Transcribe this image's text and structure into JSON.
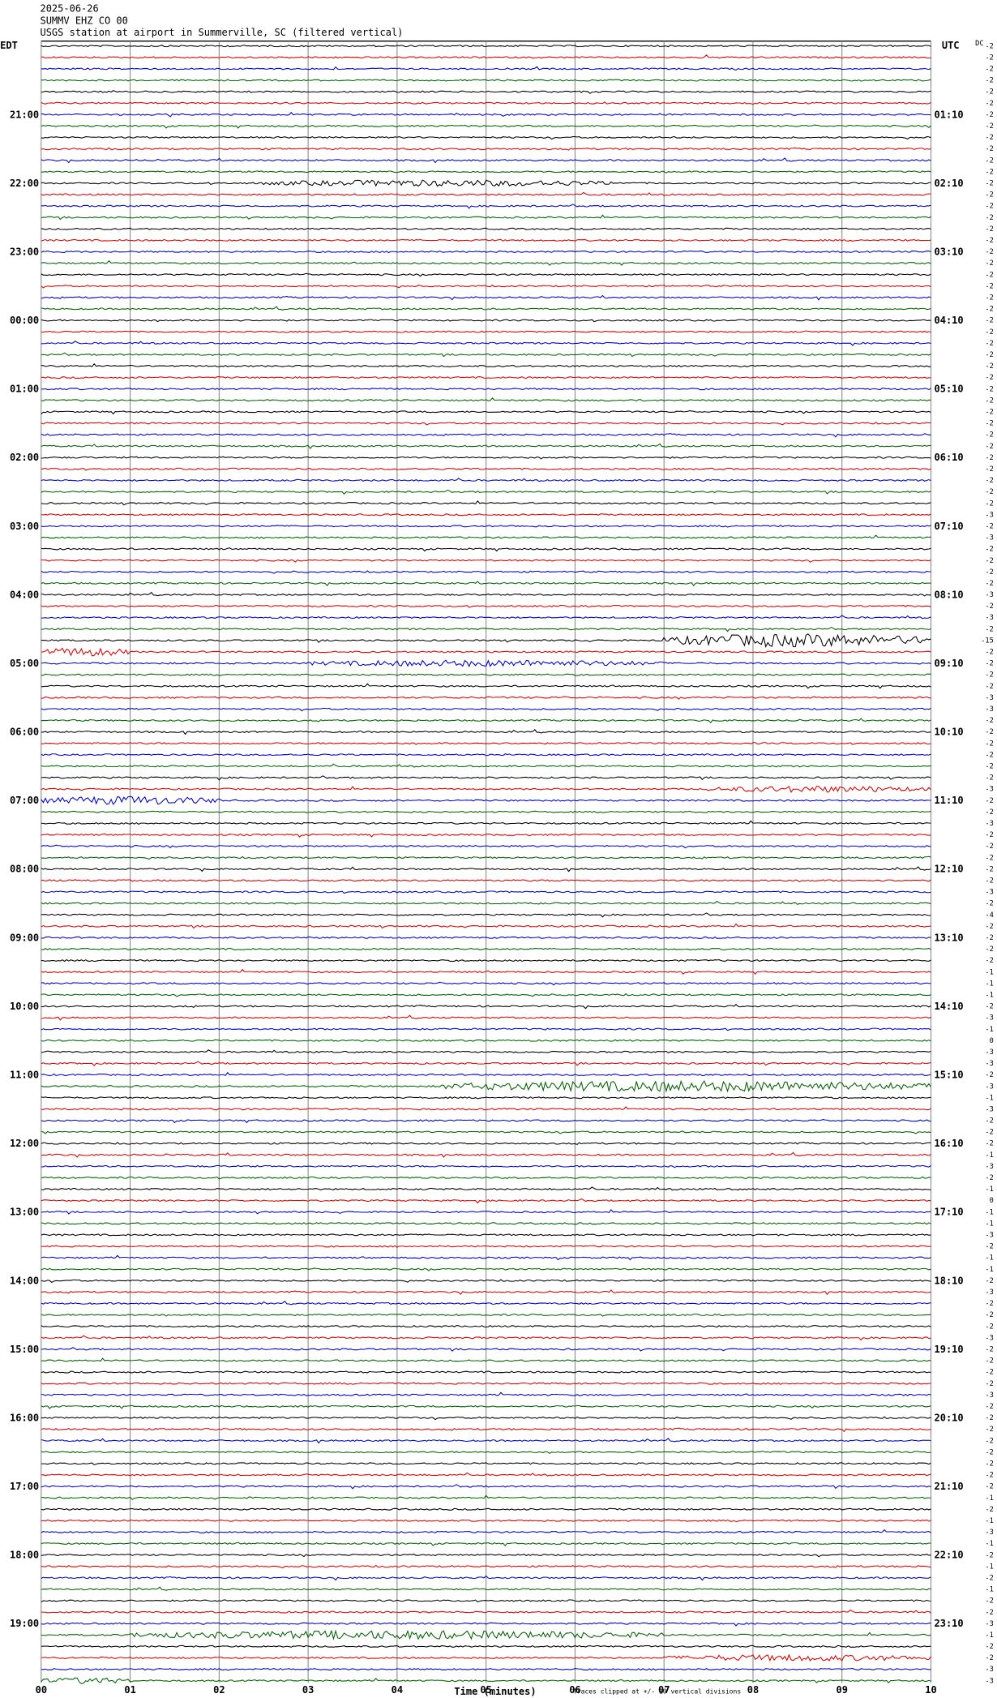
{
  "header": {
    "date": "2025-06-26",
    "station": "SUMMV EHZ CO 00",
    "description": "USGS station at airport in Summerville, SC (filtered vertical)"
  },
  "left_label": "EDT",
  "right_label": "UTC",
  "dc_label": "DC",
  "left_times": [
    "21:00",
    "22:00",
    "23:00",
    "00:00",
    "01:00",
    "02:00",
    "03:00",
    "04:00",
    "05:00",
    "06:00",
    "07:00",
    "08:00",
    "09:00",
    "10:00",
    "11:00",
    "12:00",
    "13:00",
    "14:00",
    "15:00",
    "16:00",
    "17:00",
    "18:00",
    "19:00"
  ],
  "right_times": [
    "01:10",
    "02:10",
    "03:10",
    "04:10",
    "05:10",
    "06:10",
    "07:10",
    "08:10",
    "09:10",
    "10:10",
    "11:10",
    "12:10",
    "13:10",
    "14:10",
    "15:10",
    "16:10",
    "17:10",
    "18:10",
    "19:10",
    "20:10",
    "21:10",
    "22:10",
    "23:10"
  ],
  "x_ticks": [
    "00",
    "01",
    "02",
    "03",
    "04",
    "05",
    "06",
    "07",
    "08",
    "09",
    "10"
  ],
  "x_label": "Time (minutes)",
  "footnote": "Traces clipped at +/- 10 vertical divisions",
  "trace_colors": [
    "#000000",
    "#e00000",
    "#0000d0",
    "#006400"
  ],
  "dc_offsets": [
    -2,
    -2,
    -2,
    -2,
    -2,
    -2,
    -2,
    -2,
    -2,
    -2,
    -2,
    -2,
    -2,
    -2,
    -2,
    -2,
    -2,
    -2,
    -2,
    -2,
    -2,
    -2,
    -2,
    -2,
    -2,
    -2,
    -2,
    -2,
    -2,
    -2,
    -2,
    -2,
    -2,
    -2,
    -2,
    -2,
    -2,
    -2,
    -2,
    -2,
    -2,
    -3,
    -2,
    -3,
    -2,
    -2,
    -2,
    -2,
    -3,
    -2,
    -3,
    -2,
    -15,
    -2,
    -2,
    -2,
    -2,
    -3,
    -3,
    -2,
    -2,
    -2,
    -2,
    -2,
    -2,
    -3,
    -2,
    -2,
    -3,
    -2,
    -2,
    -2,
    -2,
    -2,
    -3,
    -2,
    -4,
    -2,
    -2,
    -2,
    -2,
    -1,
    -1,
    -1,
    -2,
    -3,
    -1,
    0,
    -3,
    -3,
    -2,
    -3,
    -1,
    -3,
    -2,
    -2,
    -2,
    -1,
    -3,
    -2,
    -1,
    0,
    -1,
    -1,
    -3,
    -2,
    -1,
    -1,
    -2,
    -3,
    -2,
    -2,
    -2,
    -3,
    -2,
    -2,
    -2,
    -2,
    -3,
    -2,
    -2,
    -2,
    -2,
    -2,
    -2,
    -2,
    -2,
    -1,
    -2,
    -1,
    -3,
    -1,
    -2,
    -1,
    -2,
    -1,
    -2,
    -2,
    -3,
    -1,
    -2,
    -2,
    -3,
    -3
  ]
}
